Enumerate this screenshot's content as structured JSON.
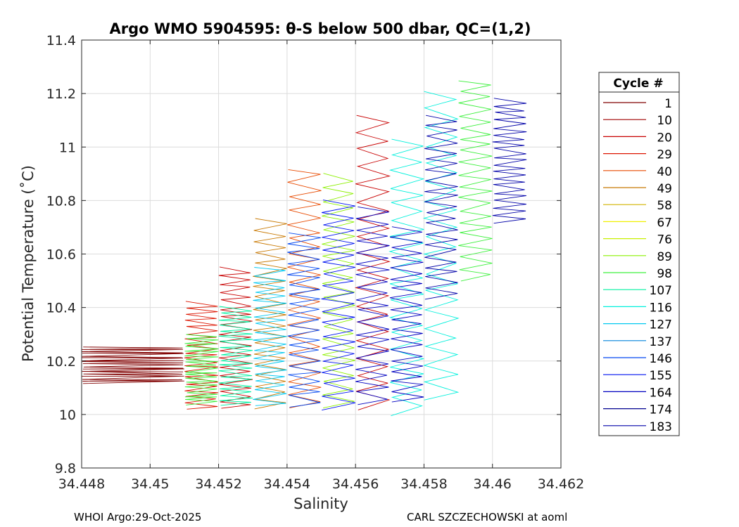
{
  "chart_data": {
    "type": "line",
    "title": "Argo WMO 5904595: θ-S below 500 dbar,  QC=(1,2)",
    "xlabel": "Salinity",
    "ylabel": "Potential Temperature (˚C)",
    "xlim": [
      34.448,
      34.462
    ],
    "ylim": [
      9.8,
      11.4
    ],
    "x_ticks": [
      "34.448",
      "34.45",
      "34.452",
      "34.454",
      "34.456",
      "34.458",
      "34.46",
      "34.462"
    ],
    "y_ticks": [
      "9.8",
      "10",
      "10.2",
      "10.4",
      "10.6",
      "10.8",
      "11",
      "11.2",
      "11.4"
    ],
    "grid": true,
    "legend": {
      "title": "Cycle #",
      "placement": "right",
      "entries": [
        {
          "label": "1",
          "color": "#800000"
        },
        {
          "label": "10",
          "color": "#a00000"
        },
        {
          "label": "20",
          "color": "#c80000"
        },
        {
          "label": "29",
          "color": "#dc1400"
        },
        {
          "label": "40",
          "color": "#e84a00"
        },
        {
          "label": "49",
          "color": "#c87800"
        },
        {
          "label": "58",
          "color": "#d2b400"
        },
        {
          "label": "67",
          "color": "#f0f000"
        },
        {
          "label": "76",
          "color": "#c8f000"
        },
        {
          "label": "89",
          "color": "#8cf000"
        },
        {
          "label": "98",
          "color": "#3cf03c"
        },
        {
          "label": "107",
          "color": "#00f0a0"
        },
        {
          "label": "116",
          "color": "#00f0dc"
        },
        {
          "label": "127",
          "color": "#00c8f0"
        },
        {
          "label": "137",
          "color": "#0082dc"
        },
        {
          "label": "146",
          "color": "#0046f0"
        },
        {
          "label": "155",
          "color": "#0014f0"
        },
        {
          "label": "164",
          "color": "#0000c0"
        },
        {
          "label": "174",
          "color": "#000090"
        },
        {
          "label": "183",
          "color": "#0000a8"
        }
      ]
    },
    "series_summary": [
      {
        "salinity_range": [
          34.448,
          34.451
        ],
        "theta_range": [
          10.12,
          10.25
        ],
        "color": "#800000"
      },
      {
        "salinity_range": [
          34.451,
          34.452
        ],
        "theta_range": [
          10.02,
          10.42
        ],
        "color": "#dc1400"
      },
      {
        "salinity_range": [
          34.451,
          34.452
        ],
        "theta_range": [
          10.04,
          10.3
        ],
        "color": "#3cf03c"
      },
      {
        "salinity_range": [
          34.452,
          34.453
        ],
        "theta_range": [
          10.02,
          10.55
        ],
        "color": "#c80000"
      },
      {
        "salinity_range": [
          34.452,
          34.453
        ],
        "theta_range": [
          10.03,
          10.4
        ],
        "color": "#00f0a0"
      },
      {
        "salinity_range": [
          34.453,
          34.454
        ],
        "theta_range": [
          10.02,
          10.73
        ],
        "color": "#c87800"
      },
      {
        "salinity_range": [
          34.453,
          34.454
        ],
        "theta_range": [
          10.03,
          10.55
        ],
        "color": "#00c8f0"
      },
      {
        "salinity_range": [
          34.454,
          34.455
        ],
        "theta_range": [
          10.02,
          10.92
        ],
        "color": "#e84a00"
      },
      {
        "salinity_range": [
          34.454,
          34.455
        ],
        "theta_range": [
          10.03,
          10.68
        ],
        "color": "#0046f0"
      },
      {
        "salinity_range": [
          34.455,
          34.456
        ],
        "theta_range": [
          10.02,
          10.9
        ],
        "color": "#8cf000"
      },
      {
        "salinity_range": [
          34.455,
          34.456
        ],
        "theta_range": [
          10.02,
          10.8
        ],
        "color": "#0014f0"
      },
      {
        "salinity_range": [
          34.456,
          34.457
        ],
        "theta_range": [
          10.02,
          11.12
        ],
        "color": "#c80000"
      },
      {
        "salinity_range": [
          34.456,
          34.457
        ],
        "theta_range": [
          10.04,
          10.78
        ],
        "color": "#0000c0"
      },
      {
        "salinity_range": [
          34.457,
          34.458
        ],
        "theta_range": [
          10.0,
          11.03
        ],
        "color": "#00f0dc"
      },
      {
        "salinity_range": [
          34.457,
          34.458
        ],
        "theta_range": [
          10.05,
          10.7
        ],
        "color": "#0000c0"
      },
      {
        "salinity_range": [
          34.458,
          34.459
        ],
        "theta_range": [
          10.05,
          11.21
        ],
        "color": "#00f0dc"
      },
      {
        "salinity_range": [
          34.458,
          34.459
        ],
        "theta_range": [
          10.43,
          11.12
        ],
        "color": "#0000a8"
      },
      {
        "salinity_range": [
          34.459,
          34.46
        ],
        "theta_range": [
          10.5,
          11.25
        ],
        "color": "#3cf03c"
      },
      {
        "salinity_range": [
          34.46,
          34.461
        ],
        "theta_range": [
          10.72,
          11.18
        ],
        "color": "#0000a8"
      }
    ]
  },
  "footer": {
    "left": "WHOI Argo:29-Oct-2025",
    "right": "CARL SZCZECHOWSKI at aoml"
  }
}
